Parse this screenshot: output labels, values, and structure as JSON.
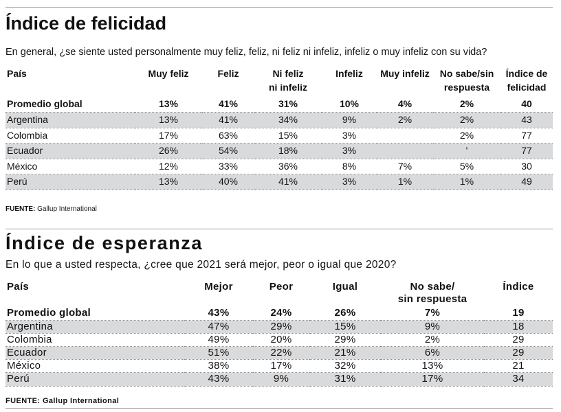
{
  "happiness": {
    "title": "Índice de felicidad",
    "question": "En general, ¿se siente usted personalmente muy feliz, feliz, ni feliz ni infeliz, infeliz o muy infeliz con su vida?",
    "headers": [
      "País",
      "Muy feliz",
      "Feliz",
      "Ni feliz\nni infeliz",
      "Infeliz",
      "Muy infeliz",
      "No sabe/sin\nrespuesta",
      "Índice de\nfelicidad"
    ],
    "rows": [
      [
        "Promedio global",
        "13%",
        "41%",
        "31%",
        "10%",
        "4%",
        "2%",
        "40"
      ],
      [
        "Argentina",
        "13%",
        "41%",
        "34%",
        "9%",
        "2%",
        "2%",
        "43"
      ],
      [
        "Colombia",
        "17%",
        "63%",
        "15%",
        "3%",
        "",
        "2%",
        "77"
      ],
      [
        "Ecuador",
        "26%",
        "54%",
        "18%",
        "3%",
        "",
        "'",
        "77"
      ],
      [
        "México",
        "12%",
        "33%",
        "36%",
        "8%",
        "7%",
        "5%",
        "30"
      ],
      [
        "Perú",
        "13%",
        "40%",
        "41%",
        "3%",
        "1%",
        "1%",
        "49"
      ]
    ],
    "source_label": "FUENTE:",
    "source_value": "Gallup International"
  },
  "hope": {
    "title": "Índice de esperanza",
    "question": "En lo que a usted respecta, ¿cree que 2021 será mejor, peor o igual que 2020?",
    "headers": [
      "País",
      "Mejor",
      "Peor",
      "Igual",
      "No sabe/\nsin respuesta",
      "Índice"
    ],
    "rows": [
      [
        "Promedio global",
        "43%",
        "24%",
        "26%",
        "7%",
        "19"
      ],
      [
        "Argentina",
        "47%",
        "29%",
        "15%",
        "9%",
        "18"
      ],
      [
        "Colombia",
        "49%",
        "20%",
        "29%",
        "2%",
        "29"
      ],
      [
        "Ecuador",
        "51%",
        "22%",
        "21%",
        "6%",
        "29"
      ],
      [
        "México",
        "38%",
        "17%",
        "32%",
        "13%",
        "21"
      ],
      [
        "Perú",
        "43%",
        "9%",
        "31%",
        "17%",
        "34"
      ]
    ],
    "source_label": "FUENTE:",
    "source_value": "Gallup International"
  }
}
